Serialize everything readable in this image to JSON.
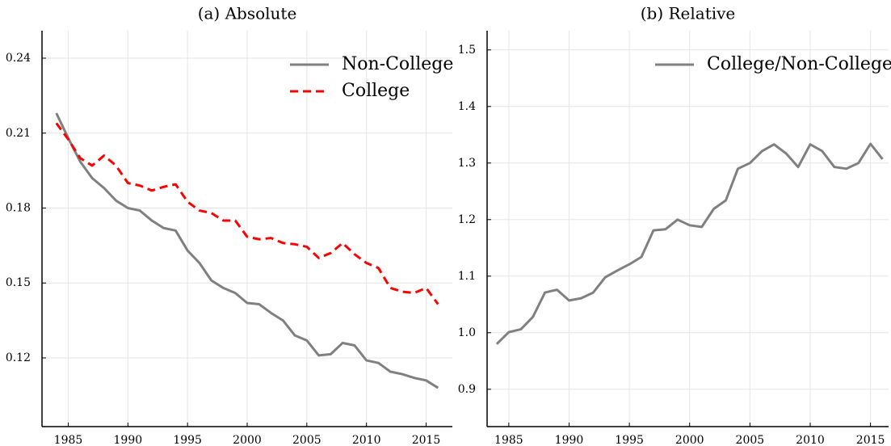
{
  "chart_data": [
    {
      "type": "line",
      "title": "(a) Absolute",
      "x": [
        1984,
        1985,
        1986,
        1987,
        1988,
        1989,
        1990,
        1991,
        1992,
        1993,
        1994,
        1995,
        1996,
        1997,
        1998,
        1999,
        2000,
        2001,
        2002,
        2003,
        2004,
        2005,
        2006,
        2007,
        2008,
        2009,
        2010,
        2011,
        2012,
        2013,
        2014,
        2015,
        2016
      ],
      "series": [
        {
          "name": "Non-College",
          "color": "#808080",
          "dashed": false,
          "values": [
            0.218,
            0.208,
            0.1986,
            0.192,
            0.188,
            0.183,
            0.18,
            0.179,
            0.175,
            0.172,
            0.171,
            0.163,
            0.158,
            0.151,
            0.148,
            0.146,
            0.142,
            0.1415,
            0.138,
            0.135,
            0.129,
            0.127,
            0.121,
            0.1215,
            0.126,
            0.125,
            0.119,
            0.118,
            0.1145,
            0.1135,
            0.112,
            0.111,
            0.108
          ]
        },
        {
          "name": "College",
          "color": "#ff0000",
          "dashed": true,
          "values": [
            0.214,
            0.2075,
            0.2,
            0.197,
            0.201,
            0.197,
            0.19,
            0.189,
            0.187,
            0.1885,
            0.1895,
            0.1825,
            0.179,
            0.178,
            0.175,
            0.175,
            0.1685,
            0.1675,
            0.168,
            0.166,
            0.1655,
            0.1645,
            0.16,
            0.162,
            0.166,
            0.1615,
            0.158,
            0.156,
            0.148,
            0.1465,
            0.146,
            0.148,
            0.1415
          ]
        }
      ],
      "xlim": [
        1982.8,
        2017.2
      ],
      "xticks": [
        1985,
        1990,
        1995,
        2000,
        2005,
        2010,
        2015
      ],
      "ylim": [
        0.0925,
        0.251
      ],
      "yticks": [
        0.12,
        0.15,
        0.18,
        0.21,
        0.24
      ],
      "grid": true,
      "legend": "upper right"
    },
    {
      "type": "line",
      "title": "(b) Relative",
      "x": [
        1984,
        1985,
        1986,
        1987,
        1988,
        1989,
        1990,
        1991,
        1992,
        1993,
        1994,
        1995,
        1996,
        1997,
        1998,
        1999,
        2000,
        2001,
        2002,
        2003,
        2004,
        2005,
        2006,
        2007,
        2008,
        2009,
        2010,
        2011,
        2012,
        2013,
        2014,
        2015,
        2016
      ],
      "series": [
        {
          "name": "College/Non-College",
          "color": "#808080",
          "dashed": false,
          "values": [
            0.98,
            1.001,
            1.006,
            1.028,
            1.071,
            1.076,
            1.057,
            1.061,
            1.071,
            1.098,
            1.11,
            1.121,
            1.134,
            1.181,
            1.183,
            1.2,
            1.19,
            1.187,
            1.219,
            1.234,
            1.29,
            1.3,
            1.321,
            1.333,
            1.317,
            1.293,
            1.333,
            1.321,
            1.293,
            1.29,
            1.3,
            1.334,
            1.307
          ]
        }
      ],
      "xlim": [
        1983.2,
        2016.5
      ],
      "xticks": [
        1985,
        1990,
        1995,
        2000,
        2005,
        2010,
        2015
      ],
      "ylim": [
        0.834,
        1.534
      ],
      "yticks": [
        0.9,
        {
          "value": 1,
          "label": "1.0"
        },
        1.1,
        1.2,
        1.3,
        1.4,
        1.5
      ],
      "grid": true,
      "legend": "upper right"
    }
  ]
}
